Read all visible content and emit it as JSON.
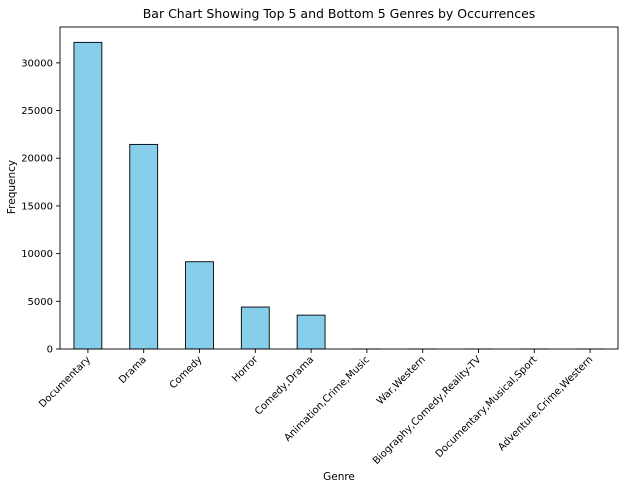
{
  "chart_data": {
    "type": "bar",
    "title": "Bar Chart Showing Top 5 and Bottom 5 Genres by Occurrences",
    "xlabel": "Genre",
    "ylabel": "Frequency",
    "categories": [
      "Documentary",
      "Drama",
      "Comedy",
      "Horror",
      "Comedy,Drama",
      "Animation,Crime,Music",
      "War,Western",
      "Biography,Comedy,Reality-TV",
      "Documentary,Musical,Sport",
      "Adventure,Crime,Western"
    ],
    "values": [
      32150,
      21450,
      9150,
      4400,
      3550,
      1,
      1,
      1,
      1,
      1
    ],
    "ylim": [
      0,
      33760
    ],
    "yticks": [
      0,
      5000,
      10000,
      15000,
      20000,
      25000,
      30000
    ],
    "bar_color": "#87CEEB",
    "edge_color": "#000000",
    "grid": false
  }
}
